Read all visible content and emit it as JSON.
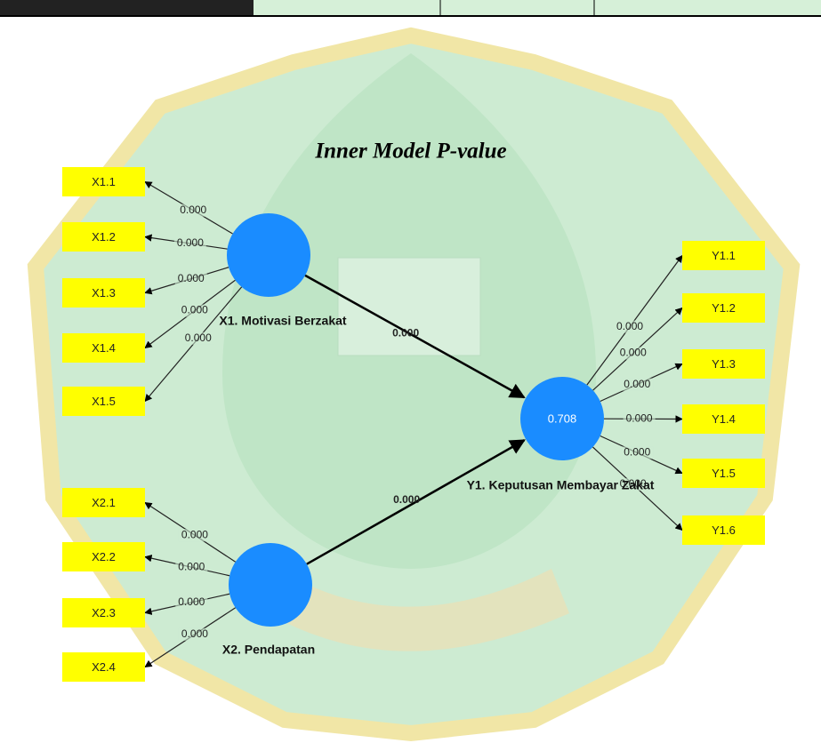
{
  "title": "Inner Model P-value",
  "constructs": [
    {
      "label": "X1. Motivasi Berzakat"
    },
    {
      "label": "Y1. Keputusan Membayar Zakat",
      "value": "0.708"
    },
    {
      "label": "X2. Pendapatan"
    }
  ],
  "x1_indicators": [
    {
      "label": "X1.1",
      "p_value": "0.000"
    },
    {
      "label": "X1.2",
      "p_value": "0.000"
    },
    {
      "label": "X1.3",
      "p_value": "0.000"
    },
    {
      "label": "X1.4",
      "p_value": "0.000"
    },
    {
      "label": "X1.5",
      "p_value": "0.000"
    }
  ],
  "x2_indicators": [
    {
      "label": "X2.1",
      "p_value": "0.000"
    },
    {
      "label": "X2.2",
      "p_value": "0.000"
    },
    {
      "label": "X2.3",
      "p_value": "0.000"
    },
    {
      "label": "X2.4",
      "p_value": "0.000"
    }
  ],
  "y1_indicators": [
    {
      "label": "Y1.1",
      "p_value": "0.000"
    },
    {
      "label": "Y1.2",
      "p_value": "0.000"
    },
    {
      "label": "Y1.3",
      "p_value": "0.000"
    },
    {
      "label": "Y1.4",
      "p_value": "0.000"
    },
    {
      "label": "Y1.5",
      "p_value": "0.000"
    },
    {
      "label": "Y1.6",
      "p_value": "0.000"
    }
  ],
  "inner_paths": [
    {
      "p_value": "0.000"
    },
    {
      "p_value": "0.000"
    }
  ]
}
